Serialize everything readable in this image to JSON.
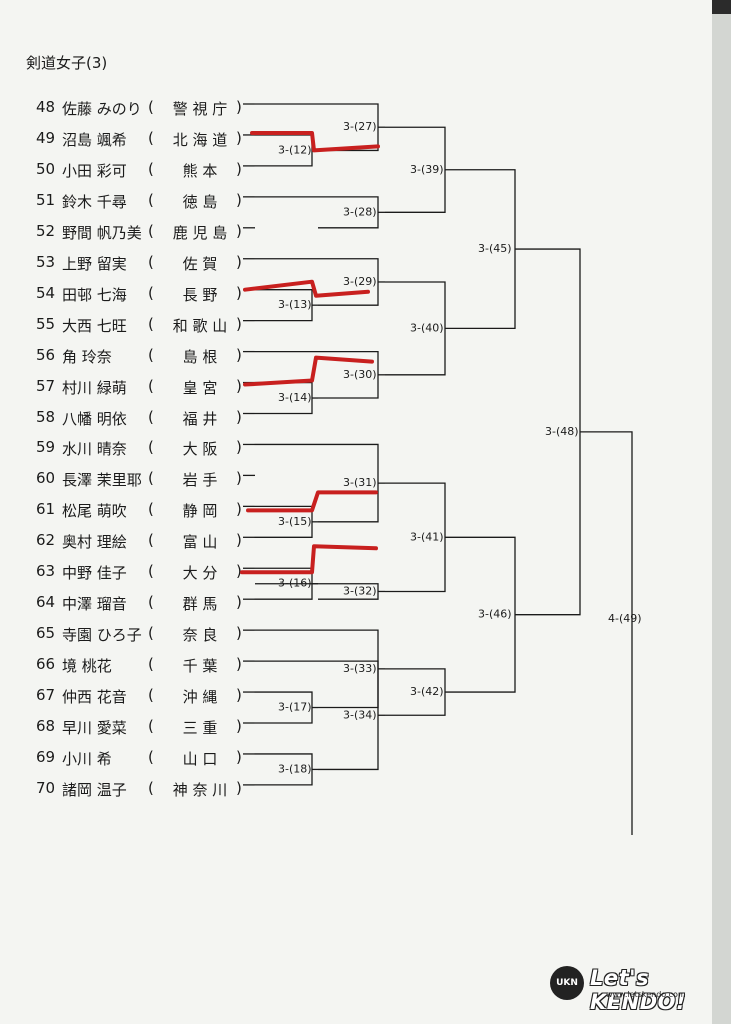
{
  "title": "剣道女子(3)",
  "entries": [
    {
      "no": "48",
      "name": "佐藤 みのり",
      "pref": "警 視 庁"
    },
    {
      "no": "49",
      "name": "沼島 颯希",
      "pref": "北 海 道"
    },
    {
      "no": "50",
      "name": "小田 彩可",
      "pref": "熊 本"
    },
    {
      "no": "51",
      "name": "鈴木 千尋",
      "pref": "徳 島"
    },
    {
      "no": "52",
      "name": "野間 帆乃美",
      "pref": "鹿 児 島"
    },
    {
      "no": "53",
      "name": "上野 留実",
      "pref": "佐 賀"
    },
    {
      "no": "54",
      "name": "田邨 七海",
      "pref": "長 野"
    },
    {
      "no": "55",
      "name": "大西 七旺",
      "pref": "和 歌 山"
    },
    {
      "no": "56",
      "name": "角 玲奈",
      "pref": "島 根"
    },
    {
      "no": "57",
      "name": "村川 緑萌",
      "pref": "皇 宮"
    },
    {
      "no": "58",
      "name": "八幡 明依",
      "pref": "福 井"
    },
    {
      "no": "59",
      "name": "水川 晴奈",
      "pref": "大 阪"
    },
    {
      "no": "60",
      "name": "長澤 茉里耶",
      "pref": "岩 手"
    },
    {
      "no": "61",
      "name": "松尾 萌吹",
      "pref": "静 岡"
    },
    {
      "no": "62",
      "name": "奥村 理絵",
      "pref": "富 山"
    },
    {
      "no": "63",
      "name": "中野 佳子",
      "pref": "大 分"
    },
    {
      "no": "64",
      "name": "中澤 瑠音",
      "pref": "群 馬"
    },
    {
      "no": "65",
      "name": "寺園 ひろ子",
      "pref": "奈 良"
    },
    {
      "no": "66",
      "name": "境 桃花",
      "pref": "千 葉"
    },
    {
      "no": "67",
      "name": "仲西 花音",
      "pref": "沖 縄"
    },
    {
      "no": "68",
      "name": "早川 愛菜",
      "pref": "三 重"
    },
    {
      "no": "69",
      "name": "小川 希",
      "pref": "山 口"
    },
    {
      "no": "70",
      "name": "諸岡 温子",
      "pref": "神 奈 川"
    }
  ],
  "matches": {
    "m12": "3-(12)",
    "m13": "3-(13)",
    "m14": "3-(14)",
    "m15": "3-(15)",
    "m16": "3-(16)",
    "m17": "3-(17)",
    "m18": "3-(18)",
    "m27": "3-(27)",
    "m28": "3-(28)",
    "m29": "3-(29)",
    "m30": "3-(30)",
    "m31": "3-(31)",
    "m32": "3-(32)",
    "m33": "3-(33)",
    "m34": "3-(34)",
    "m39": "3-(39)",
    "m40": "3-(40)",
    "m41": "3-(41)",
    "m42": "3-(42)",
    "m45": "3-(45)",
    "m46": "3-(46)",
    "m48": "3-(48)",
    "m49": "4-(49)"
  },
  "colors": {
    "ink": "#1b1b1b",
    "winner_line": "#c8201f"
  },
  "logo": {
    "text": "Let's KENDO!",
    "url": "www.letskendo.com",
    "badge": "UKN"
  }
}
